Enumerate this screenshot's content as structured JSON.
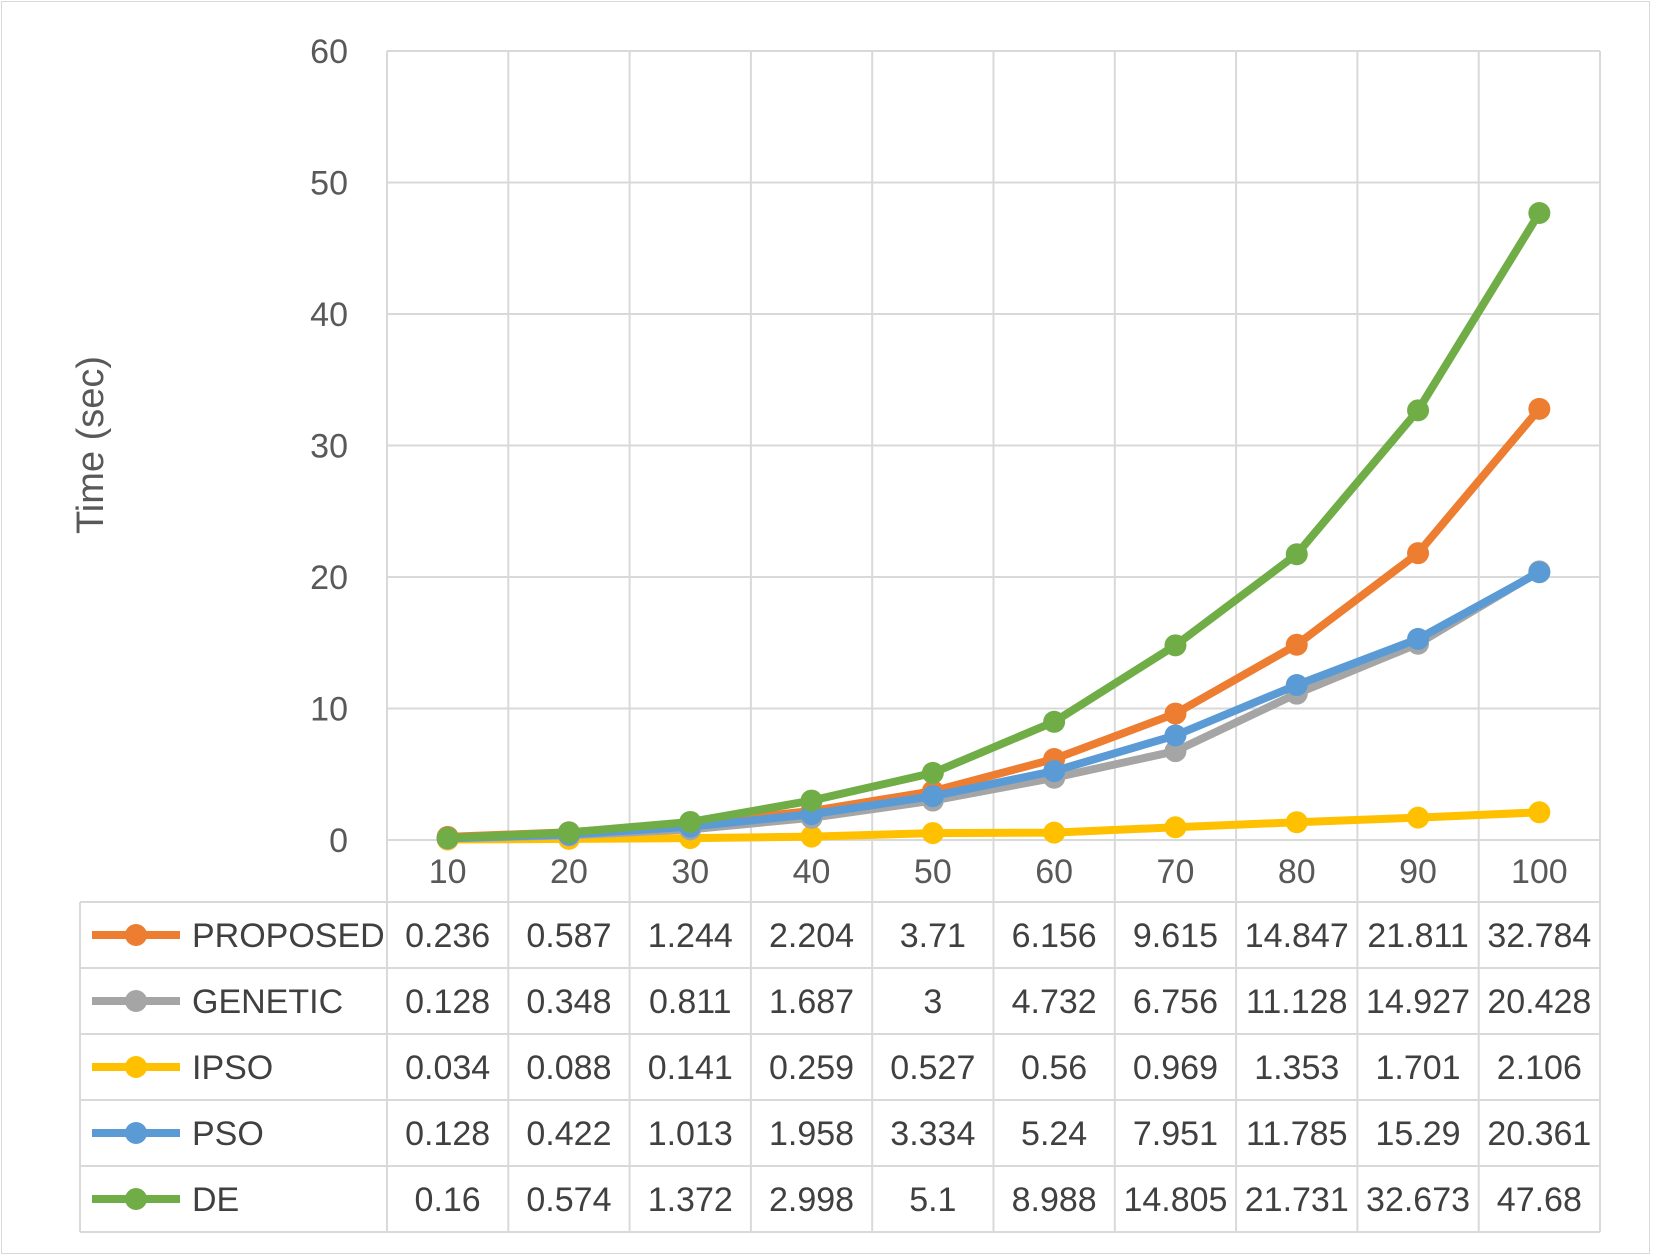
{
  "chart_data": {
    "type": "line",
    "title": "",
    "xlabel": "",
    "ylabel": "Time (sec)",
    "categories": [
      "10",
      "20",
      "30",
      "40",
      "50",
      "60",
      "70",
      "80",
      "90",
      "100"
    ],
    "ylim": [
      0,
      60
    ],
    "yticks": [
      "0",
      "10",
      "20",
      "30",
      "40",
      "50",
      "60"
    ],
    "grid": true,
    "legend": "data-table",
    "series": [
      {
        "name": "PROPOSED",
        "color": "#ED7D31",
        "values": [
          0.236,
          0.587,
          1.244,
          2.204,
          3.71,
          6.156,
          9.615,
          14.847,
          21.811,
          32.784
        ],
        "labels": [
          "0.236",
          "0.587",
          "1.244",
          "2.204",
          "3.71",
          "6.156",
          "9.615",
          "14.847",
          "21.811",
          "32.784"
        ]
      },
      {
        "name": "GENETIC",
        "color": "#A5A5A5",
        "values": [
          0.128,
          0.348,
          0.811,
          1.687,
          3,
          4.732,
          6.756,
          11.128,
          14.927,
          20.428
        ],
        "labels": [
          "0.128",
          "0.348",
          "0.811",
          "1.687",
          "3",
          "4.732",
          "6.756",
          "11.128",
          "14.927",
          "20.428"
        ]
      },
      {
        "name": "IPSO",
        "color": "#FFC000",
        "values": [
          0.034,
          0.088,
          0.141,
          0.259,
          0.527,
          0.56,
          0.969,
          1.353,
          1.701,
          2.106
        ],
        "labels": [
          "0.034",
          "0.088",
          "0.141",
          "0.259",
          "0.527",
          "0.56",
          "0.969",
          "1.353",
          "1.701",
          "2.106"
        ]
      },
      {
        "name": "PSO",
        "color": "#5B9BD5",
        "values": [
          0.128,
          0.422,
          1.013,
          1.958,
          3.334,
          5.24,
          7.951,
          11.785,
          15.29,
          20.361
        ],
        "labels": [
          "0.128",
          "0.422",
          "1.013",
          "1.958",
          "3.334",
          "5.24",
          "7.951",
          "11.785",
          "15.29",
          "20.361"
        ]
      },
      {
        "name": "DE",
        "color": "#70AD47",
        "values": [
          0.16,
          0.574,
          1.372,
          2.998,
          5.1,
          8.988,
          14.805,
          21.731,
          32.673,
          47.68
        ],
        "labels": [
          "0.16",
          "0.574",
          "1.372",
          "2.998",
          "5.1",
          "8.988",
          "14.805",
          "21.731",
          "32.673",
          "47.68"
        ]
      }
    ]
  }
}
